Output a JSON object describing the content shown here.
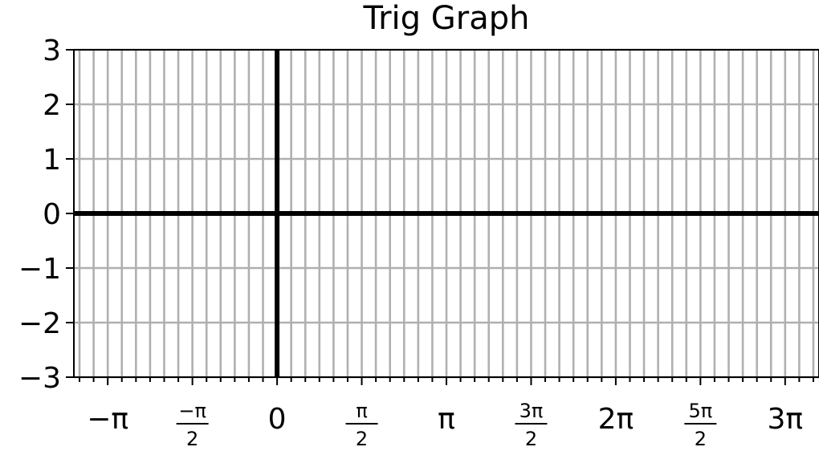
{
  "chart_data": {
    "type": "line",
    "title": "Trig Graph",
    "xlabel": "",
    "ylabel": "",
    "xlim_over_pi": [
      -1.2,
      3.2
    ],
    "ylim": [
      -3,
      3
    ],
    "grid": true,
    "x_minor_step_over_pi": 0.08333333,
    "x_ticks": [
      {
        "value_over_pi": -1,
        "label": "−π",
        "fraction": false
      },
      {
        "value_over_pi": -0.5,
        "label": "−π/2",
        "fraction": true,
        "num": "−π",
        "den": "2"
      },
      {
        "value_over_pi": 0,
        "label": "0",
        "fraction": false
      },
      {
        "value_over_pi": 0.5,
        "label": "π/2",
        "fraction": true,
        "num": "π",
        "den": "2"
      },
      {
        "value_over_pi": 1,
        "label": "π",
        "fraction": false
      },
      {
        "value_over_pi": 1.5,
        "label": "3π/2",
        "fraction": true,
        "num": "3π",
        "den": "2"
      },
      {
        "value_over_pi": 2,
        "label": "2π",
        "fraction": false
      },
      {
        "value_over_pi": 2.5,
        "label": "5π/2",
        "fraction": true,
        "num": "5π",
        "den": "2"
      },
      {
        "value_over_pi": 3,
        "label": "3π",
        "fraction": false
      }
    ],
    "y_ticks": [
      {
        "value": 3,
        "label": "3"
      },
      {
        "value": 2,
        "label": "2"
      },
      {
        "value": 1,
        "label": "1"
      },
      {
        "value": 0,
        "label": "0"
      },
      {
        "value": -1,
        "label": "−1"
      },
      {
        "value": -2,
        "label": "−2"
      },
      {
        "value": -3,
        "label": "−3"
      }
    ],
    "series": [],
    "colors": {
      "grid": "#b0b0b0",
      "axes": "#000000"
    }
  }
}
